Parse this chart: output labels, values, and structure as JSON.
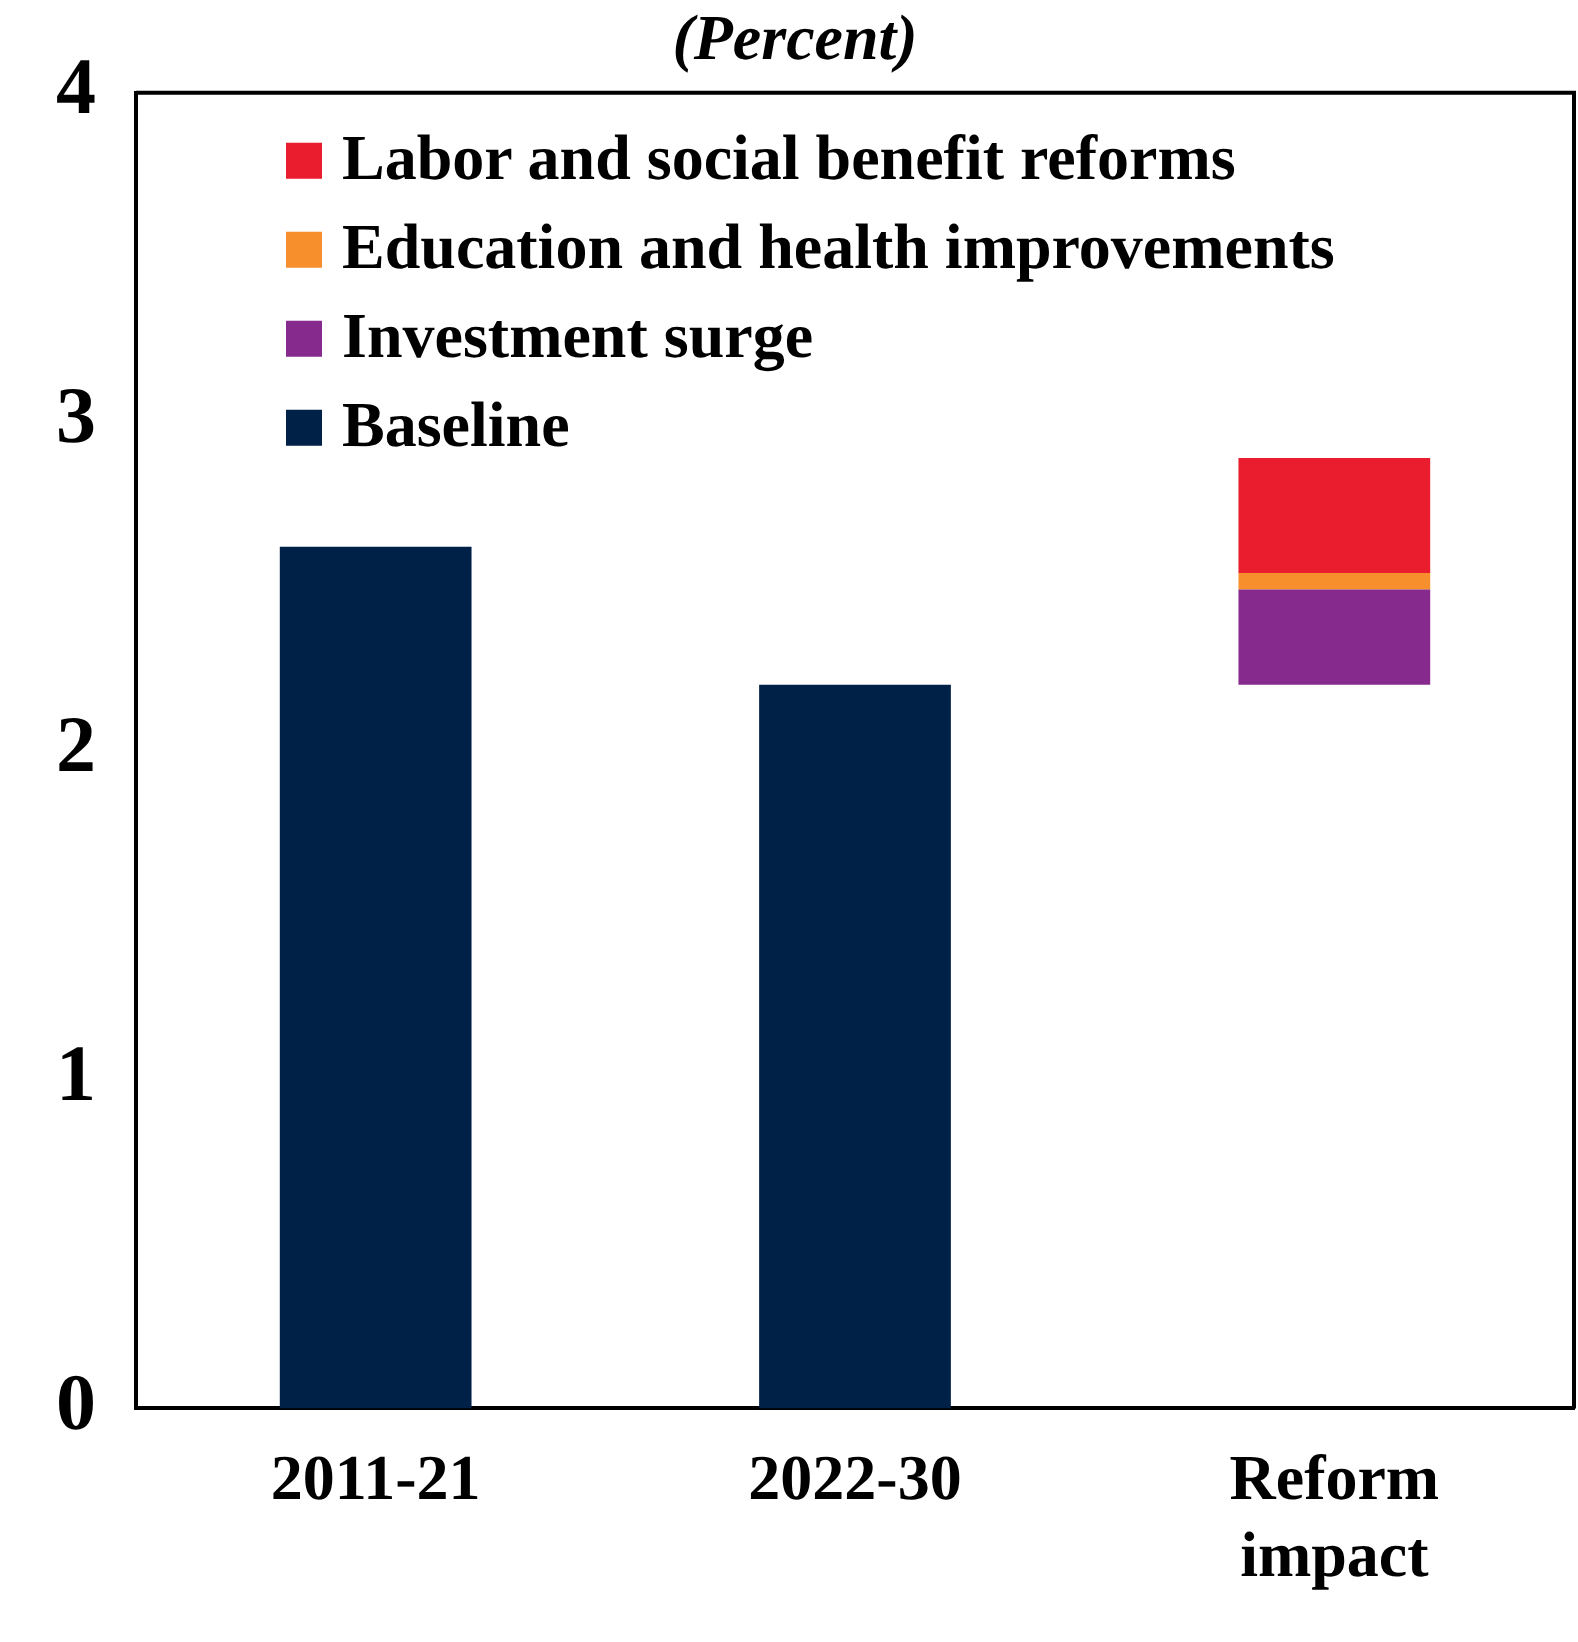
{
  "chart_data": {
    "type": "bar",
    "title": "(Percent)",
    "categories": [
      "2011-21",
      "2022-30",
      "Reform impact"
    ],
    "series": [
      {
        "name": "Baseline",
        "color": "#002147",
        "values": [
          2.62,
          2.2,
          null
        ]
      },
      {
        "name": "Investment surge",
        "color": "#862a8e",
        "values": [
          null,
          null,
          0.29
        ],
        "base": [
          null,
          null,
          2.2
        ]
      },
      {
        "name": "Education and health improvements",
        "color": "#f7902c",
        "values": [
          null,
          null,
          0.05
        ],
        "base": [
          null,
          null,
          2.49
        ]
      },
      {
        "name": "Labor and social benefit reforms",
        "color": "#e91d2d",
        "values": [
          null,
          null,
          0.35
        ],
        "base": [
          null,
          null,
          2.54
        ]
      }
    ],
    "ylim": [
      0,
      4
    ],
    "yticks": [
      0,
      1,
      2,
      3,
      4
    ],
    "grid": false,
    "legend": "top left"
  }
}
